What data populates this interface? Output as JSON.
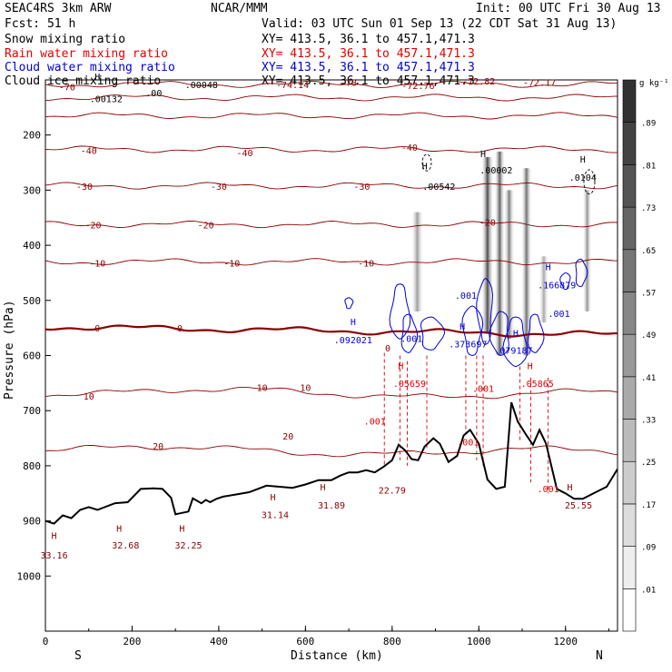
{
  "header": {
    "left1": "SEAC4RS  3km ARW",
    "center1": "NCAR/MMM",
    "right1": "Init: 00 UTC Fri 30 Aug 13",
    "left2": "Fcst:   51 h",
    "right2": "Valid: 03 UTC Sun 01 Sep 13 (22 CDT Sat 31 Aug 13)",
    "fields": [
      {
        "label": "Snow mixing ratio",
        "xy": "XY= 413.5, 36.1 to 457.1,471.3",
        "color": "#000000"
      },
      {
        "label": "Rain water mixing ratio",
        "xy": "XY= 413.5, 36.1 to 457.1,471.3",
        "color": "#e00000"
      },
      {
        "label": "Cloud water mixing ratio",
        "xy": "XY= 413.5, 36.1 to 457.1,471.3",
        "color": "#0000dd"
      },
      {
        "label": "Cloud ice mixing ratio",
        "xy": "XY= 413.5, 36.1 to 457.1,471.3",
        "color": "#000000"
      }
    ]
  },
  "colors": {
    "temperature": "#8b0000",
    "freezing": "#8b0000",
    "rain": "#e00000",
    "cloud": "#0000dd",
    "terrain": "#000000"
  },
  "chart_data": {
    "type": "cross-section",
    "xlabel": "Distance (km)",
    "ylabel": "Pressure (hPa)",
    "xlim": [
      0,
      1320
    ],
    "ylim": [
      1100,
      100
    ],
    "x_ticks": [
      0,
      200,
      400,
      600,
      800,
      1000,
      1200
    ],
    "y_ticks": [
      200,
      300,
      400,
      500,
      600,
      700,
      800,
      900,
      1000
    ],
    "end_labels": {
      "left": "S",
      "right": "N"
    },
    "colorbar": {
      "unit": "g kg⁻¹",
      "levels": [
        0.01,
        0.09,
        0.17,
        0.25,
        0.33,
        0.41,
        0.49,
        0.57,
        0.65,
        0.73,
        0.81,
        0.89
      ]
    },
    "temperature_contours": [
      {
        "value": -70,
        "p0": 108
      },
      {
        "value": -60,
        "p0": 132
      },
      {
        "value": -50,
        "p0": 165
      },
      {
        "value": -40,
        "p0": 226
      },
      {
        "value": -30,
        "p0": 292
      },
      {
        "value": -20,
        "p0": 362
      },
      {
        "value": -10,
        "p0": 430
      },
      {
        "value": 0,
        "p0": 548,
        "freezing": true
      },
      {
        "value": 10,
        "p0": 665
      },
      {
        "value": 20,
        "p0": 770
      }
    ],
    "temperature_labels": [
      {
        "text": "-70",
        "x": 50,
        "p": 112
      },
      {
        "text": "-40",
        "x": 100,
        "p": 228
      },
      {
        "text": "-40",
        "x": 460,
        "p": 232
      },
      {
        "text": "-40",
        "x": 840,
        "p": 222
      },
      {
        "text": "-30",
        "x": 90,
        "p": 293
      },
      {
        "text": "-30",
        "x": 400,
        "p": 293
      },
      {
        "text": "-30",
        "x": 730,
        "p": 293
      },
      {
        "text": "-20",
        "x": 110,
        "p": 363
      },
      {
        "text": "-20",
        "x": 370,
        "p": 363
      },
      {
        "text": "-20",
        "x": 1020,
        "p": 358
      },
      {
        "text": "-10",
        "x": 120,
        "p": 432
      },
      {
        "text": "-10",
        "x": 430,
        "p": 432
      },
      {
        "text": "-10",
        "x": 740,
        "p": 432
      },
      {
        "text": "0",
        "x": 120,
        "p": 550
      },
      {
        "text": "0",
        "x": 310,
        "p": 550
      },
      {
        "text": "0",
        "x": 790,
        "p": 586
      },
      {
        "text": "10",
        "x": 100,
        "p": 673
      },
      {
        "text": "10",
        "x": 500,
        "p": 658
      },
      {
        "text": "10",
        "x": 600,
        "p": 658
      },
      {
        "text": "20",
        "x": 260,
        "p": 764
      },
      {
        "text": "20",
        "x": 560,
        "p": 746
      },
      {
        "text": "-74.14",
        "x": 570,
        "p": 108
      },
      {
        "text": "-73",
        "x": 700,
        "p": 104
      },
      {
        "text": "-72.76",
        "x": 860,
        "p": 110
      },
      {
        "text": "-72.82",
        "x": 1000,
        "p": 102
      },
      {
        "text": "-72.17",
        "x": 1140,
        "p": 104
      }
    ],
    "terrain": [
      [
        0,
        900
      ],
      [
        20,
        905
      ],
      [
        40,
        890
      ],
      [
        60,
        895
      ],
      [
        80,
        880
      ],
      [
        100,
        875
      ],
      [
        120,
        880
      ],
      [
        160,
        868
      ],
      [
        190,
        866
      ],
      [
        220,
        842
      ],
      [
        250,
        841
      ],
      [
        270,
        842
      ],
      [
        290,
        858
      ],
      [
        300,
        888
      ],
      [
        330,
        883
      ],
      [
        340,
        859
      ],
      [
        360,
        868
      ],
      [
        370,
        862
      ],
      [
        380,
        866
      ],
      [
        395,
        860
      ],
      [
        410,
        856
      ],
      [
        440,
        852
      ],
      [
        470,
        848
      ],
      [
        490,
        842
      ],
      [
        510,
        836
      ],
      [
        540,
        838
      ],
      [
        570,
        840
      ],
      [
        600,
        834
      ],
      [
        630,
        826
      ],
      [
        660,
        826
      ],
      [
        680,
        818
      ],
      [
        700,
        812
      ],
      [
        720,
        812
      ],
      [
        740,
        808
      ],
      [
        760,
        812
      ],
      [
        780,
        802
      ],
      [
        800,
        790
      ],
      [
        815,
        762
      ],
      [
        830,
        772
      ],
      [
        845,
        788
      ],
      [
        860,
        790
      ],
      [
        875,
        765
      ],
      [
        895,
        750
      ],
      [
        910,
        760
      ],
      [
        930,
        793
      ],
      [
        950,
        782
      ],
      [
        965,
        745
      ],
      [
        980,
        735
      ],
      [
        1000,
        760
      ],
      [
        1020,
        825
      ],
      [
        1040,
        842
      ],
      [
        1060,
        838
      ],
      [
        1075,
        685
      ],
      [
        1090,
        720
      ],
      [
        1110,
        745
      ],
      [
        1125,
        762
      ],
      [
        1140,
        735
      ],
      [
        1155,
        760
      ],
      [
        1180,
        842
      ],
      [
        1200,
        850
      ],
      [
        1220,
        860
      ],
      [
        1240,
        860
      ],
      [
        1270,
        848
      ],
      [
        1295,
        838
      ],
      [
        1320,
        806
      ]
    ],
    "precip_streaks": [
      {
        "x": 858,
        "w": 14,
        "p_top": 340,
        "p_bot": 520,
        "max": 0.45
      },
      {
        "x": 1020,
        "w": 14,
        "p_top": 240,
        "p_bot": 560,
        "max": 0.81
      },
      {
        "x": 1048,
        "w": 12,
        "p_top": 230,
        "p_bot": 600,
        "max": 0.73
      },
      {
        "x": 1070,
        "w": 12,
        "p_top": 300,
        "p_bot": 570,
        "max": 0.6
      },
      {
        "x": 1110,
        "w": 12,
        "p_top": 260,
        "p_bot": 600,
        "max": 0.65
      },
      {
        "x": 1150,
        "w": 11,
        "p_top": 420,
        "p_bot": 540,
        "max": 0.4
      },
      {
        "x": 1250,
        "w": 10,
        "p_top": 300,
        "p_bot": 520,
        "max": 0.5
      }
    ],
    "rain_lines": [
      {
        "x": 782,
        "p_top": 595,
        "p_bot": 800
      },
      {
        "x": 818,
        "p_top": 600,
        "p_bot": 790
      },
      {
        "x": 835,
        "p_top": 610,
        "p_bot": 800
      },
      {
        "x": 880,
        "p_top": 600,
        "p_bot": 770
      },
      {
        "x": 970,
        "p_top": 600,
        "p_bot": 740
      },
      {
        "x": 995,
        "p_top": 600,
        "p_bot": 790
      },
      {
        "x": 1010,
        "p_top": 600,
        "p_bot": 800
      },
      {
        "x": 1095,
        "p_top": 620,
        "p_bot": 755
      },
      {
        "x": 1120,
        "p_top": 640,
        "p_bot": 830
      },
      {
        "x": 1160,
        "p_top": 640,
        "p_bot": 850
      }
    ],
    "cloud_contours": [
      {
        "x": 818,
        "p": 520,
        "rx": 10,
        "ry": 50
      },
      {
        "x": 838,
        "p": 560,
        "rx": 8,
        "ry": 35
      },
      {
        "x": 890,
        "p": 560,
        "rx": 12,
        "ry": 30
      },
      {
        "x": 985,
        "p": 555,
        "rx": 10,
        "ry": 45
      },
      {
        "x": 1015,
        "p": 520,
        "rx": 8,
        "ry": 60
      },
      {
        "x": 1050,
        "p": 560,
        "rx": 10,
        "ry": 40
      },
      {
        "x": 1085,
        "p": 575,
        "rx": 12,
        "ry": 45
      },
      {
        "x": 1130,
        "p": 560,
        "rx": 8,
        "ry": 35
      },
      {
        "x": 1235,
        "p": 450,
        "rx": 6,
        "ry": 25
      },
      {
        "x": 700,
        "p": 505,
        "rx": 4,
        "ry": 10
      },
      {
        "x": 1200,
        "p": 465,
        "rx": 5,
        "ry": 15
      }
    ],
    "ice_contours": [
      {
        "x": 880,
        "p": 250,
        "rx": 5,
        "ry": 15
      },
      {
        "x": 1255,
        "p": 285,
        "rx": 6,
        "ry": 22
      }
    ],
    "annotations": [
      {
        "text": "H",
        "x": 120,
        "p": 100,
        "color": "#000000"
      },
      {
        "text": ".00132",
        "x": 140,
        "p": 140,
        "color": "#000000"
      },
      {
        "text": ".00",
        "x": 250,
        "p": 130,
        "color": "#000000"
      },
      {
        "text": ".00048",
        "x": 360,
        "p": 115,
        "color": "#000000"
      },
      {
        "text": "H",
        "x": 875,
        "p": 262,
        "color": "#000000"
      },
      {
        "text": ".00542",
        "x": 908,
        "p": 299,
        "color": "#000000"
      },
      {
        "text": "H",
        "x": 1010,
        "p": 240,
        "color": "#000000"
      },
      {
        "text": ".00002",
        "x": 1040,
        "p": 270,
        "color": "#000000"
      },
      {
        "text": "H",
        "x": 1240,
        "p": 250,
        "color": "#000000"
      },
      {
        "text": ".0104",
        "x": 1240,
        "p": 283,
        "color": "#000000"
      },
      {
        "text": "H",
        "x": 710,
        "p": 545,
        "color": "#0000dd"
      },
      {
        "text": ".092021",
        "x": 710,
        "p": 578,
        "color": "#0000dd"
      },
      {
        "text": ".001",
        "x": 845,
        "p": 575,
        "color": "#0000dd"
      },
      {
        "text": ".001",
        "x": 970,
        "p": 497,
        "color": "#0000dd"
      },
      {
        "text": "H",
        "x": 962,
        "p": 553,
        "color": "#0000dd"
      },
      {
        "text": ".373697",
        "x": 975,
        "p": 585,
        "color": "#0000dd"
      },
      {
        "text": "H",
        "x": 1085,
        "p": 565,
        "color": "#0000dd"
      },
      {
        "text": ".079187",
        "x": 1080,
        "p": 597,
        "color": "#0000dd"
      },
      {
        "text": "H",
        "x": 1160,
        "p": 445,
        "color": "#0000dd"
      },
      {
        "text": ".166879",
        "x": 1180,
        "p": 478,
        "color": "#0000dd"
      },
      {
        "text": ".001",
        "x": 1185,
        "p": 530,
        "color": "#0000dd"
      },
      {
        "text": "H",
        "x": 820,
        "p": 625,
        "color": "#e00000"
      },
      {
        "text": ".05659",
        "x": 840,
        "p": 657,
        "color": "#e00000"
      },
      {
        "text": ".001",
        "x": 1010,
        "p": 666,
        "color": "#e00000"
      },
      {
        "text": "H",
        "x": 1118,
        "p": 625,
        "color": "#e00000"
      },
      {
        "text": ".05865",
        "x": 1135,
        "p": 657,
        "color": "#e00000"
      },
      {
        "text": ".001",
        "x": 760,
        "p": 725,
        "color": "#e00000"
      },
      {
        "text": ".001",
        "x": 975,
        "p": 763,
        "color": "#e00000"
      },
      {
        "text": "22.79",
        "x": 800,
        "p": 850,
        "color": "#8b0000"
      },
      {
        "text": "H",
        "x": 525,
        "p": 863,
        "color": "#8b0000"
      },
      {
        "text": "31.14",
        "x": 530,
        "p": 895,
        "color": "#8b0000"
      },
      {
        "text": "H",
        "x": 640,
        "p": 845,
        "color": "#8b0000"
      },
      {
        "text": "31.89",
        "x": 660,
        "p": 878,
        "color": "#8b0000"
      },
      {
        "text": "H",
        "x": 20,
        "p": 933,
        "color": "#8b0000"
      },
      {
        "text": "33.16",
        "x": 20,
        "p": 968,
        "color": "#8b0000"
      },
      {
        "text": "H",
        "x": 170,
        "p": 920,
        "color": "#8b0000"
      },
      {
        "text": "32.68",
        "x": 185,
        "p": 950,
        "color": "#8b0000"
      },
      {
        "text": "H",
        "x": 315,
        "p": 920,
        "color": "#8b0000"
      },
      {
        "text": "32.25",
        "x": 330,
        "p": 950,
        "color": "#8b0000"
      },
      {
        "text": ".001",
        "x": 1160,
        "p": 848,
        "color": "#e00000"
      },
      {
        "text": "H",
        "x": 1210,
        "p": 845,
        "color": "#8b0000"
      },
      {
        "text": "25.55",
        "x": 1230,
        "p": 878,
        "color": "#8b0000"
      }
    ]
  }
}
